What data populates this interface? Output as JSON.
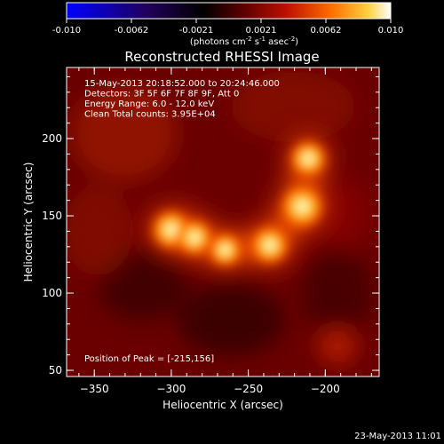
{
  "chart_data": {
    "type": "heatmap",
    "title": "Reconstructed RHESSI Image",
    "xlabel": "Heliocentric X (arcsec)",
    "ylabel": "Heliocentric Y (arcsec)",
    "xlim": [
      -368,
      -165
    ],
    "ylim": [
      46,
      246
    ],
    "x_ticks": [
      -350,
      -300,
      -250,
      -200
    ],
    "y_ticks": [
      50,
      100,
      150,
      200
    ],
    "colorbar": {
      "ticks": [
        "-0.010",
        "-0.0062",
        "-0.0021",
        "0.0021",
        "0.0062",
        "0.010"
      ],
      "range": [
        -0.01,
        0.01
      ],
      "unit_label_prefix": "(photons cm",
      "unit_sup1": "-2",
      "unit_mid": " s",
      "unit_sup2": "-1",
      "unit_mid2": " asec",
      "unit_sup3": "-2",
      "unit_suffix": ")",
      "colors": [
        "#0000ff",
        "#1a0060",
        "#000000",
        "#700000",
        "#d02000",
        "#ff8000",
        "#ffff80",
        "#ffffff"
      ]
    },
    "annotations": [
      "15-May-2013 20:18:52.000 to 20:24:46.000",
      "Detectors: 3F 5F 6F 7F 8F 9F, Att 0",
      "Energy Range: 6.0 - 12.0 keV",
      "Clean     Total counts: 3.95E+04"
    ],
    "peak_label": "Position of Peak = [-215,156]",
    "peak": [
      -215,
      156
    ],
    "sources": [
      {
        "x": -300,
        "y": 141,
        "intensity": 0.9
      },
      {
        "x": -285,
        "y": 136,
        "intensity": 0.8
      },
      {
        "x": -265,
        "y": 128,
        "intensity": 0.7
      },
      {
        "x": -236,
        "y": 131,
        "intensity": 0.85
      },
      {
        "x": -215,
        "y": 156,
        "intensity": 1.0
      },
      {
        "x": -211,
        "y": 187,
        "intensity": 0.8
      }
    ]
  },
  "footer": {
    "date": "23-May-2013 11:01"
  }
}
